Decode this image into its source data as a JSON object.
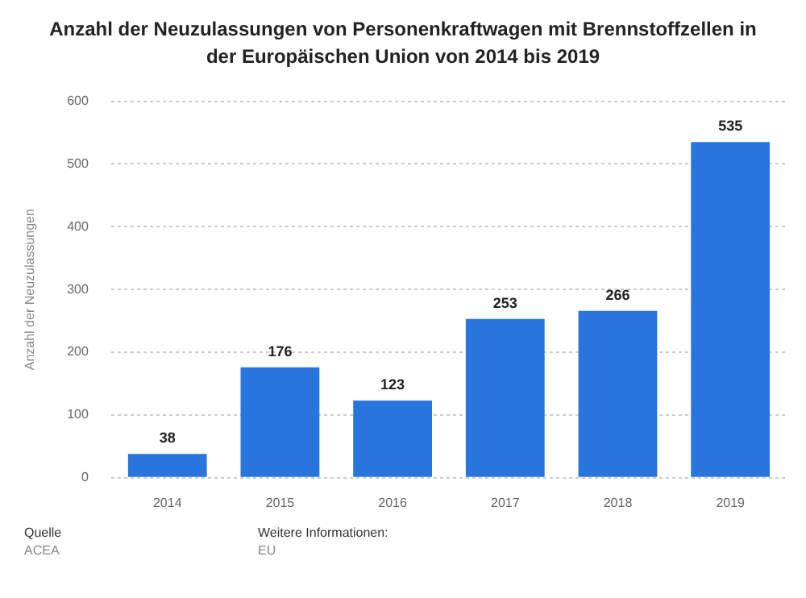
{
  "chart_data": {
    "type": "bar",
    "title": "Anzahl der Neuzulassungen von Personenkraftwagen mit Brennstoffzellen in der Europäischen Union von 2014 bis 2019",
    "ylabel": "Anzahl der Neuzulassungen",
    "categories": [
      "2014",
      "2015",
      "2016",
      "2017",
      "2018",
      "2019"
    ],
    "values": [
      38,
      176,
      123,
      253,
      266,
      535
    ],
    "color": "#2876dd",
    "ylim": [
      0,
      600
    ],
    "yticks": [
      0,
      100,
      200,
      300,
      400,
      500,
      600
    ],
    "grid": "y",
    "data_labels": true,
    "annotations": [
      "Quelle",
      "ACEA",
      "Weitere Informationen:",
      "EU"
    ]
  }
}
